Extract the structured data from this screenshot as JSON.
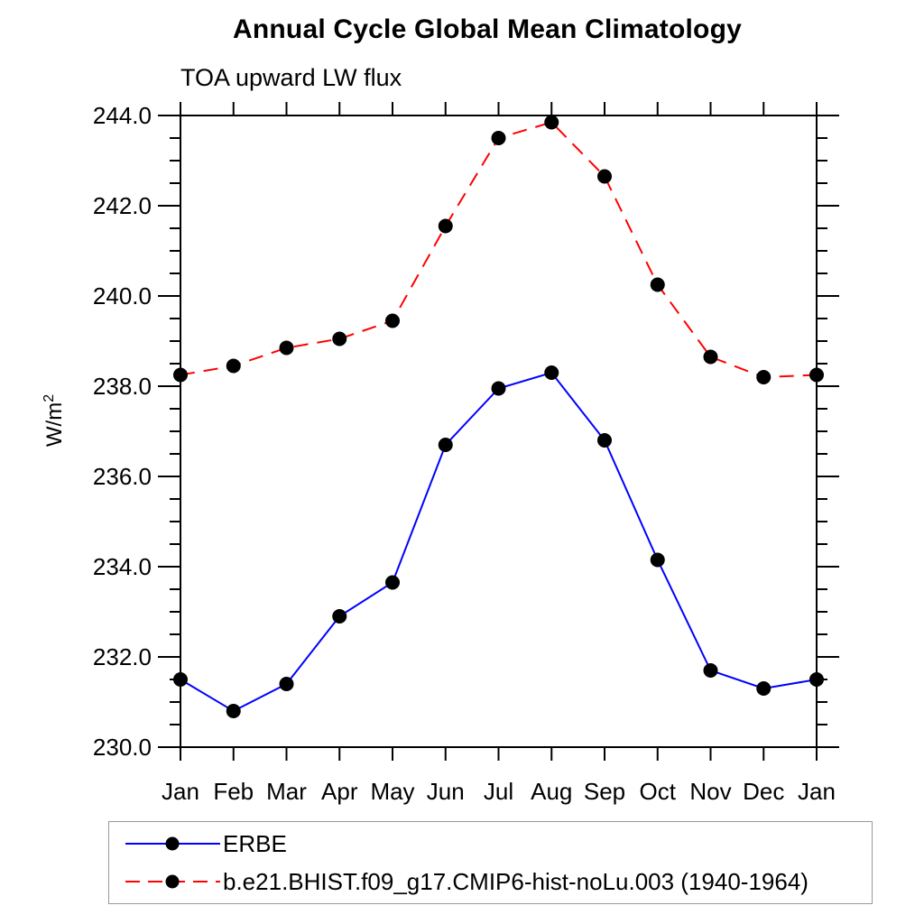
{
  "page": {
    "background": "#ffffff",
    "text_color": "#000000"
  },
  "chart_data": {
    "type": "line",
    "title": "Annual Cycle Global Mean Climatology",
    "subtitle": "TOA upward LW flux",
    "ylabel": "W/m²",
    "ylabel_base": "W/m",
    "ylabel_sup": "2",
    "categories": [
      "Jan",
      "Feb",
      "Mar",
      "Apr",
      "May",
      "Jun",
      "Jul",
      "Aug",
      "Sep",
      "Oct",
      "Nov",
      "Dec",
      "Jan"
    ],
    "ylim": [
      230.0,
      244.0
    ],
    "y_major_step": 2.0,
    "y_minor_step": 0.5,
    "y_tick_labels": [
      "244.0",
      "242.0",
      "240.0",
      "238.0",
      "236.0",
      "234.0",
      "232.0",
      "230.0"
    ],
    "grid": false,
    "legend_position": "bottom-left",
    "axis_color": "#000000",
    "marker_color": "#000000",
    "series": [
      {
        "name": "ERBE",
        "color": "#0000ff",
        "line_style": "solid",
        "marker": "circle",
        "values": [
          231.5,
          230.8,
          231.4,
          232.9,
          233.65,
          236.7,
          237.95,
          238.3,
          236.8,
          234.15,
          231.7,
          231.3,
          231.5
        ]
      },
      {
        "name": "b.e21.BHIST.f09_g17.CMIP6-hist-noLu.003 (1940-1964)",
        "color": "#ff0000",
        "line_style": "dashed",
        "marker": "circle",
        "values": [
          238.25,
          238.45,
          238.85,
          239.05,
          239.45,
          241.55,
          243.5,
          243.85,
          242.65,
          240.25,
          238.65,
          238.2,
          238.25
        ]
      }
    ]
  }
}
